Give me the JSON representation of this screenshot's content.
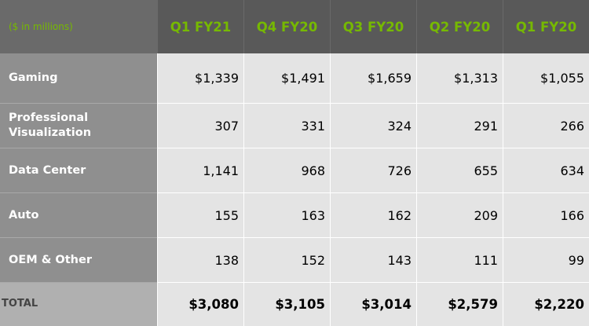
{
  "chart_data": {
    "type": "table",
    "header_note": "($ in millions)",
    "columns": [
      "Q1 FY21",
      "Q4 FY20",
      "Q3 FY20",
      "Q2 FY20",
      "Q1 FY20"
    ],
    "rows": [
      {
        "label": "Gaming",
        "values": [
          "$1,339",
          "$1,491",
          "$1,659",
          "$1,313",
          "$1,055"
        ]
      },
      {
        "label": "Professional Visualization",
        "values": [
          "307",
          "331",
          "324",
          "291",
          "266"
        ]
      },
      {
        "label": "Data Center",
        "values": [
          "1,141",
          "968",
          "726",
          "655",
          "634"
        ]
      },
      {
        "label": "Auto",
        "values": [
          "155",
          "163",
          "162",
          "209",
          "166"
        ]
      },
      {
        "label": "OEM & Other",
        "values": [
          "138",
          "152",
          "143",
          "111",
          "99"
        ]
      }
    ],
    "total": {
      "label": "TOTAL",
      "values": [
        "$3,080",
        "$3,105",
        "$3,014",
        "$2,579",
        "$2,220"
      ]
    },
    "colors": {
      "header_text": "#76b900",
      "header_bg": "#595959",
      "label_bg": "#8f8f8f",
      "value_bg": "#e4e4e4"
    }
  }
}
